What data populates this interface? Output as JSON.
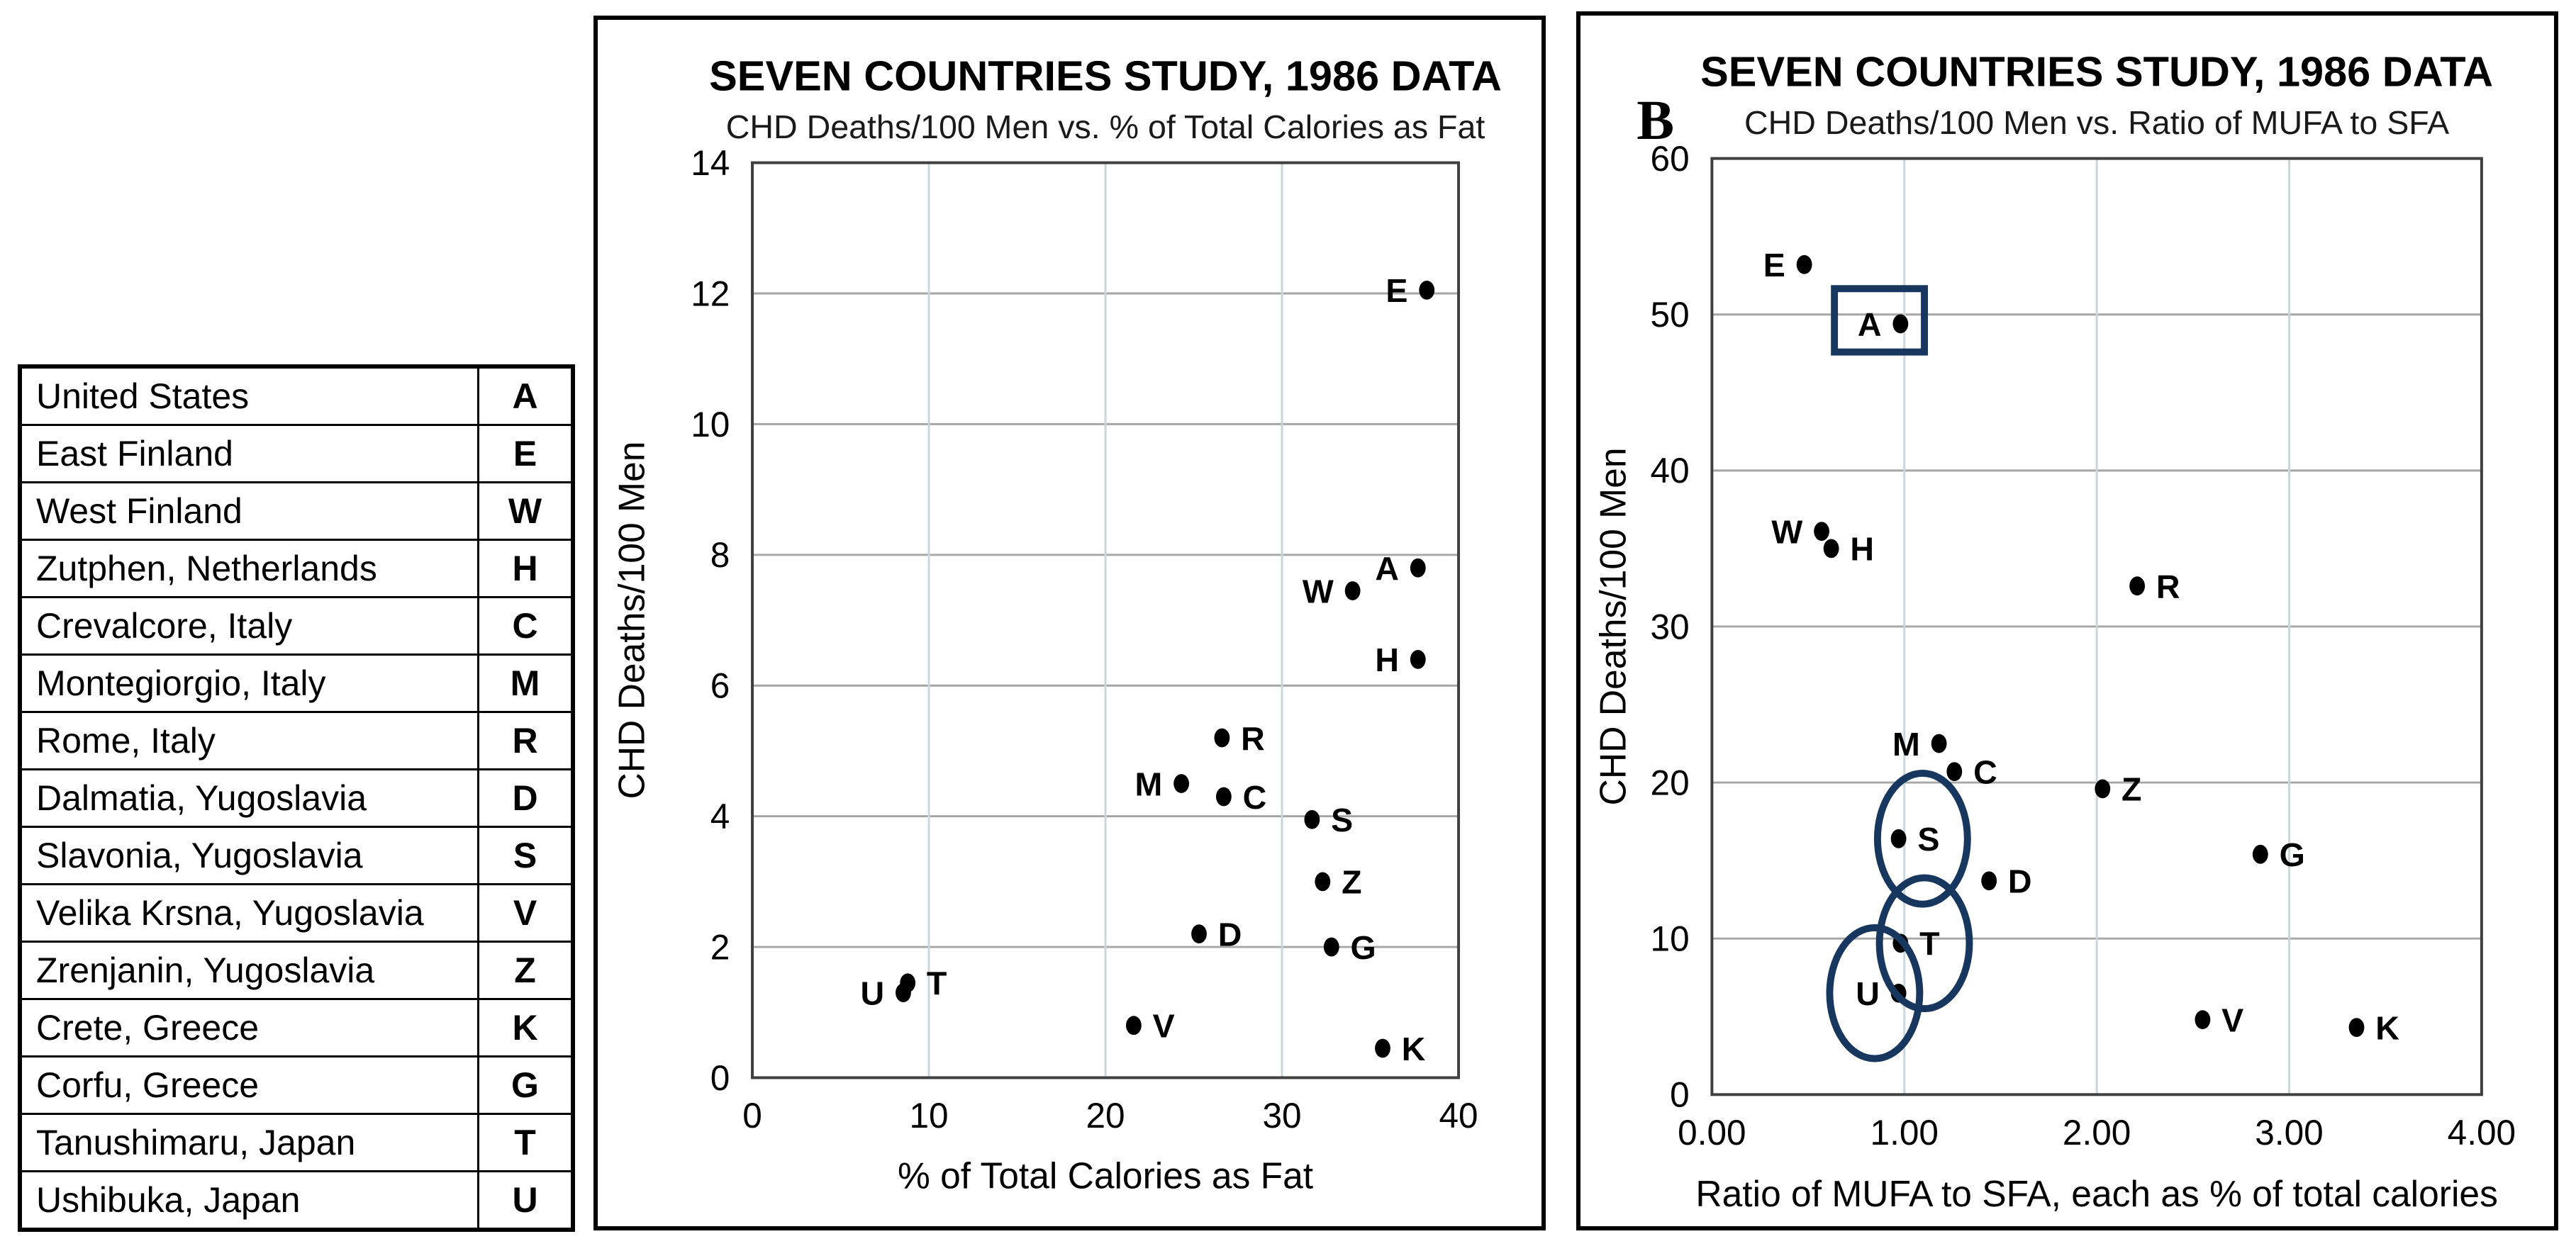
{
  "colors": {
    "background": "#ffffff",
    "dot": "#000000",
    "frame": "#3f3f3f",
    "grid_horizontal": "#a6a6a6",
    "grid_vertical": "#c9d6db",
    "annotation_navy": "#17375e",
    "table_border": "#000000"
  },
  "legend_table": {
    "rows": [
      {
        "name": "United States",
        "code": "A"
      },
      {
        "name": "East Finland",
        "code": "E"
      },
      {
        "name": "West Finland",
        "code": "W"
      },
      {
        "name": "Zutphen, Netherlands",
        "code": "H"
      },
      {
        "name": "Crevalcore, Italy",
        "code": "C"
      },
      {
        "name": "Montegiorgio, Italy",
        "code": "M"
      },
      {
        "name": "Rome, Italy",
        "code": "R"
      },
      {
        "name": "Dalmatia, Yugoslavia",
        "code": "D"
      },
      {
        "name": "Slavonia, Yugoslavia",
        "code": "S"
      },
      {
        "name": "Velika Krsna, Yugoslavia",
        "code": "V"
      },
      {
        "name": "Zrenjanin, Yugoslavia",
        "code": "Z"
      },
      {
        "name": "Crete, Greece",
        "code": "K"
      },
      {
        "name": "Corfu, Greece",
        "code": "G"
      },
      {
        "name": "Tanushimaru, Japan",
        "code": "T"
      },
      {
        "name": "Ushibuka, Japan",
        "code": "U"
      }
    ]
  },
  "chart_data": [
    {
      "type": "scatter",
      "id": "fat-chart",
      "panel_label": "",
      "title": "SEVEN COUNTRIES STUDY, 1986 DATA",
      "subtitle": "CHD Deaths/100 Men vs. % of Total Calories as Fat",
      "xlabel": "% of Total Calories as Fat",
      "ylabel": "CHD Deaths/100 Men",
      "xlim": [
        0,
        40
      ],
      "ylim": [
        0,
        14
      ],
      "xticks": {
        "values": [
          0,
          10,
          20,
          30,
          40
        ],
        "labels": [
          "0",
          "10",
          "20",
          "30",
          "40"
        ]
      },
      "yticks": {
        "values": [
          0,
          2,
          4,
          6,
          8,
          10,
          12,
          14
        ],
        "labels": [
          "0",
          "2",
          "4",
          "6",
          "8",
          "10",
          "12",
          "14"
        ]
      },
      "grid": true,
      "points": [
        {
          "code": "E",
          "x": 38.2,
          "y": 12.05,
          "label_side": "left",
          "annotation": null
        },
        {
          "code": "A",
          "x": 37.7,
          "y": 7.8,
          "label_side": "left",
          "annotation": null
        },
        {
          "code": "W",
          "x": 34.0,
          "y": 7.45,
          "label_side": "left",
          "annotation": null
        },
        {
          "code": "H",
          "x": 37.7,
          "y": 6.4,
          "label_side": "left",
          "annotation": null
        },
        {
          "code": "R",
          "x": 26.6,
          "y": 5.2,
          "label_side": "right",
          "annotation": null
        },
        {
          "code": "M",
          "x": 24.3,
          "y": 4.5,
          "label_side": "left",
          "annotation": null
        },
        {
          "code": "C",
          "x": 26.7,
          "y": 4.3,
          "label_side": "right",
          "annotation": null
        },
        {
          "code": "S",
          "x": 31.7,
          "y": 3.95,
          "label_side": "right",
          "annotation": null
        },
        {
          "code": "Z",
          "x": 32.3,
          "y": 3.0,
          "label_side": "right",
          "annotation": null
        },
        {
          "code": "D",
          "x": 25.3,
          "y": 2.2,
          "label_side": "right",
          "annotation": null
        },
        {
          "code": "G",
          "x": 32.8,
          "y": 2.0,
          "label_side": "right",
          "annotation": null
        },
        {
          "code": "T",
          "x": 8.8,
          "y": 1.45,
          "label_side": "right",
          "annotation": null
        },
        {
          "code": "U",
          "x": 8.55,
          "y": 1.3,
          "label_side": "left",
          "annotation": null
        },
        {
          "code": "V",
          "x": 21.6,
          "y": 0.8,
          "label_side": "right",
          "annotation": null
        },
        {
          "code": "K",
          "x": 35.7,
          "y": 0.45,
          "label_side": "right",
          "annotation": null
        }
      ]
    },
    {
      "type": "scatter",
      "id": "mufa-chart",
      "panel_label": "B",
      "title": "SEVEN COUNTRIES STUDY, 1986 DATA",
      "subtitle": "CHD Deaths/100 Men vs. Ratio of MUFA to SFA",
      "xlabel": "Ratio of MUFA to SFA, each as % of total calories",
      "ylabel": "CHD Deaths/100 Men",
      "xlim": [
        0,
        4
      ],
      "ylim": [
        0,
        60
      ],
      "xticks": {
        "values": [
          0,
          1,
          2,
          3,
          4
        ],
        "labels": [
          "0.00",
          "1.00",
          "2.00",
          "3.00",
          "4.00"
        ]
      },
      "yticks": {
        "values": [
          0,
          10,
          20,
          30,
          40,
          50,
          60
        ],
        "labels": [
          "0",
          "10",
          "20",
          "30",
          "40",
          "50",
          "60"
        ]
      },
      "grid": true,
      "points": [
        {
          "code": "E",
          "x": 0.48,
          "y": 53.2,
          "label_side": "left",
          "annotation": null
        },
        {
          "code": "A",
          "x": 0.98,
          "y": 49.4,
          "label_side": "left",
          "annotation": "box"
        },
        {
          "code": "W",
          "x": 0.57,
          "y": 36.1,
          "label_side": "left",
          "annotation": null
        },
        {
          "code": "H",
          "x": 0.62,
          "y": 35.0,
          "label_side": "right",
          "annotation": null
        },
        {
          "code": "R",
          "x": 2.21,
          "y": 32.6,
          "label_side": "right",
          "annotation": null
        },
        {
          "code": "M",
          "x": 1.18,
          "y": 22.5,
          "label_side": "left",
          "annotation": null
        },
        {
          "code": "C",
          "x": 1.26,
          "y": 20.7,
          "label_side": "right",
          "annotation": null
        },
        {
          "code": "Z",
          "x": 2.03,
          "y": 19.6,
          "label_side": "right",
          "annotation": null
        },
        {
          "code": "S",
          "x": 0.97,
          "y": 16.4,
          "label_side": "right",
          "annotation": "ellipse"
        },
        {
          "code": "G",
          "x": 2.85,
          "y": 15.4,
          "label_side": "right",
          "annotation": null
        },
        {
          "code": "D",
          "x": 1.44,
          "y": 13.7,
          "label_side": "right",
          "annotation": null
        },
        {
          "code": "T",
          "x": 0.98,
          "y": 9.7,
          "label_side": "right",
          "annotation": "ellipse"
        },
        {
          "code": "U",
          "x": 0.97,
          "y": 6.5,
          "label_side": "left",
          "annotation": "ellipse"
        },
        {
          "code": "V",
          "x": 2.55,
          "y": 4.8,
          "label_side": "right",
          "annotation": null
        },
        {
          "code": "K",
          "x": 3.35,
          "y": 4.3,
          "label_side": "right",
          "annotation": null
        }
      ]
    }
  ]
}
